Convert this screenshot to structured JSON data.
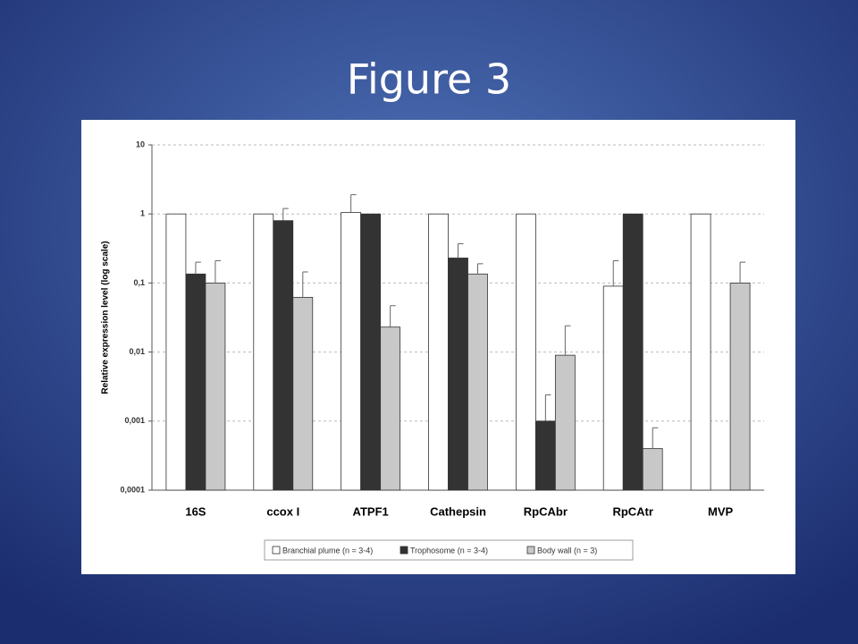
{
  "slide_title": "Figure 3",
  "chart_data": {
    "type": "bar",
    "y_label": "Relative expression level (log scale)",
    "categories": [
      "16S",
      "ccox I",
      "ATPF1",
      "Cathepsin",
      "RpCAbr",
      "RpCAtr",
      "MVP"
    ],
    "series": [
      {
        "name": "Branchial plume (n = 3-4)",
        "color": "#ffffff",
        "values": [
          1,
          1,
          1.05,
          1,
          1,
          0.09,
          1
        ],
        "errors": [
          null,
          null,
          0.85,
          null,
          null,
          0.12,
          null
        ]
      },
      {
        "name": "Trophosome (n = 3-4)",
        "color": "#333333",
        "values": [
          0.135,
          0.8,
          1,
          0.23,
          0.001,
          1,
          null
        ],
        "errors": [
          0.065,
          0.4,
          null,
          0.14,
          0.0014,
          null,
          null
        ]
      },
      {
        "name": "Body wall (n = 3)",
        "color": "#c8c8c8",
        "values": [
          0.1,
          0.062,
          0.023,
          0.135,
          0.009,
          0.0004,
          0.1
        ],
        "errors": [
          0.11,
          0.083,
          0.024,
          0.055,
          0.015,
          0.0004,
          0.1
        ]
      }
    ],
    "log_scale": true,
    "ylim": [
      0.0001,
      10
    ],
    "yticks": [
      {
        "value": 0.0001,
        "label": "0,0001"
      },
      {
        "value": 0.001,
        "label": "0,001"
      },
      {
        "value": 0.01,
        "label": "0,01"
      },
      {
        "value": 0.1,
        "label": "0,1"
      },
      1,
      10
    ],
    "grid": true,
    "legend": "bottom"
  }
}
